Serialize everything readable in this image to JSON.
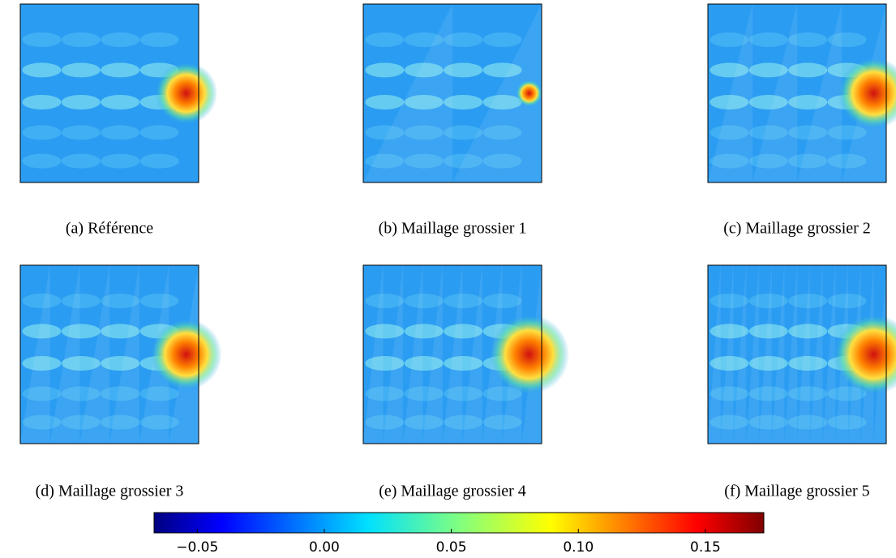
{
  "panels": [
    {
      "caption": "(a) Référence"
    },
    {
      "caption": "(b) Maillage grossier 1"
    },
    {
      "caption": "(c) Maillage grossier 2"
    },
    {
      "caption": "(d) Maillage grossier 3"
    },
    {
      "caption": "(e) Maillage grossier 4"
    },
    {
      "caption": "(f) Maillage grossier 5"
    }
  ],
  "colorbar": {
    "lim": [
      -0.067,
      0.173
    ],
    "ticks": [
      {
        "value": -0.05,
        "label": "−0.05"
      },
      {
        "value": 0,
        "label": "0.00"
      },
      {
        "value": 0.05,
        "label": "0.05"
      },
      {
        "value": 0.1,
        "label": "0.10"
      },
      {
        "value": 0.15,
        "label": "0.15"
      }
    ]
  }
}
